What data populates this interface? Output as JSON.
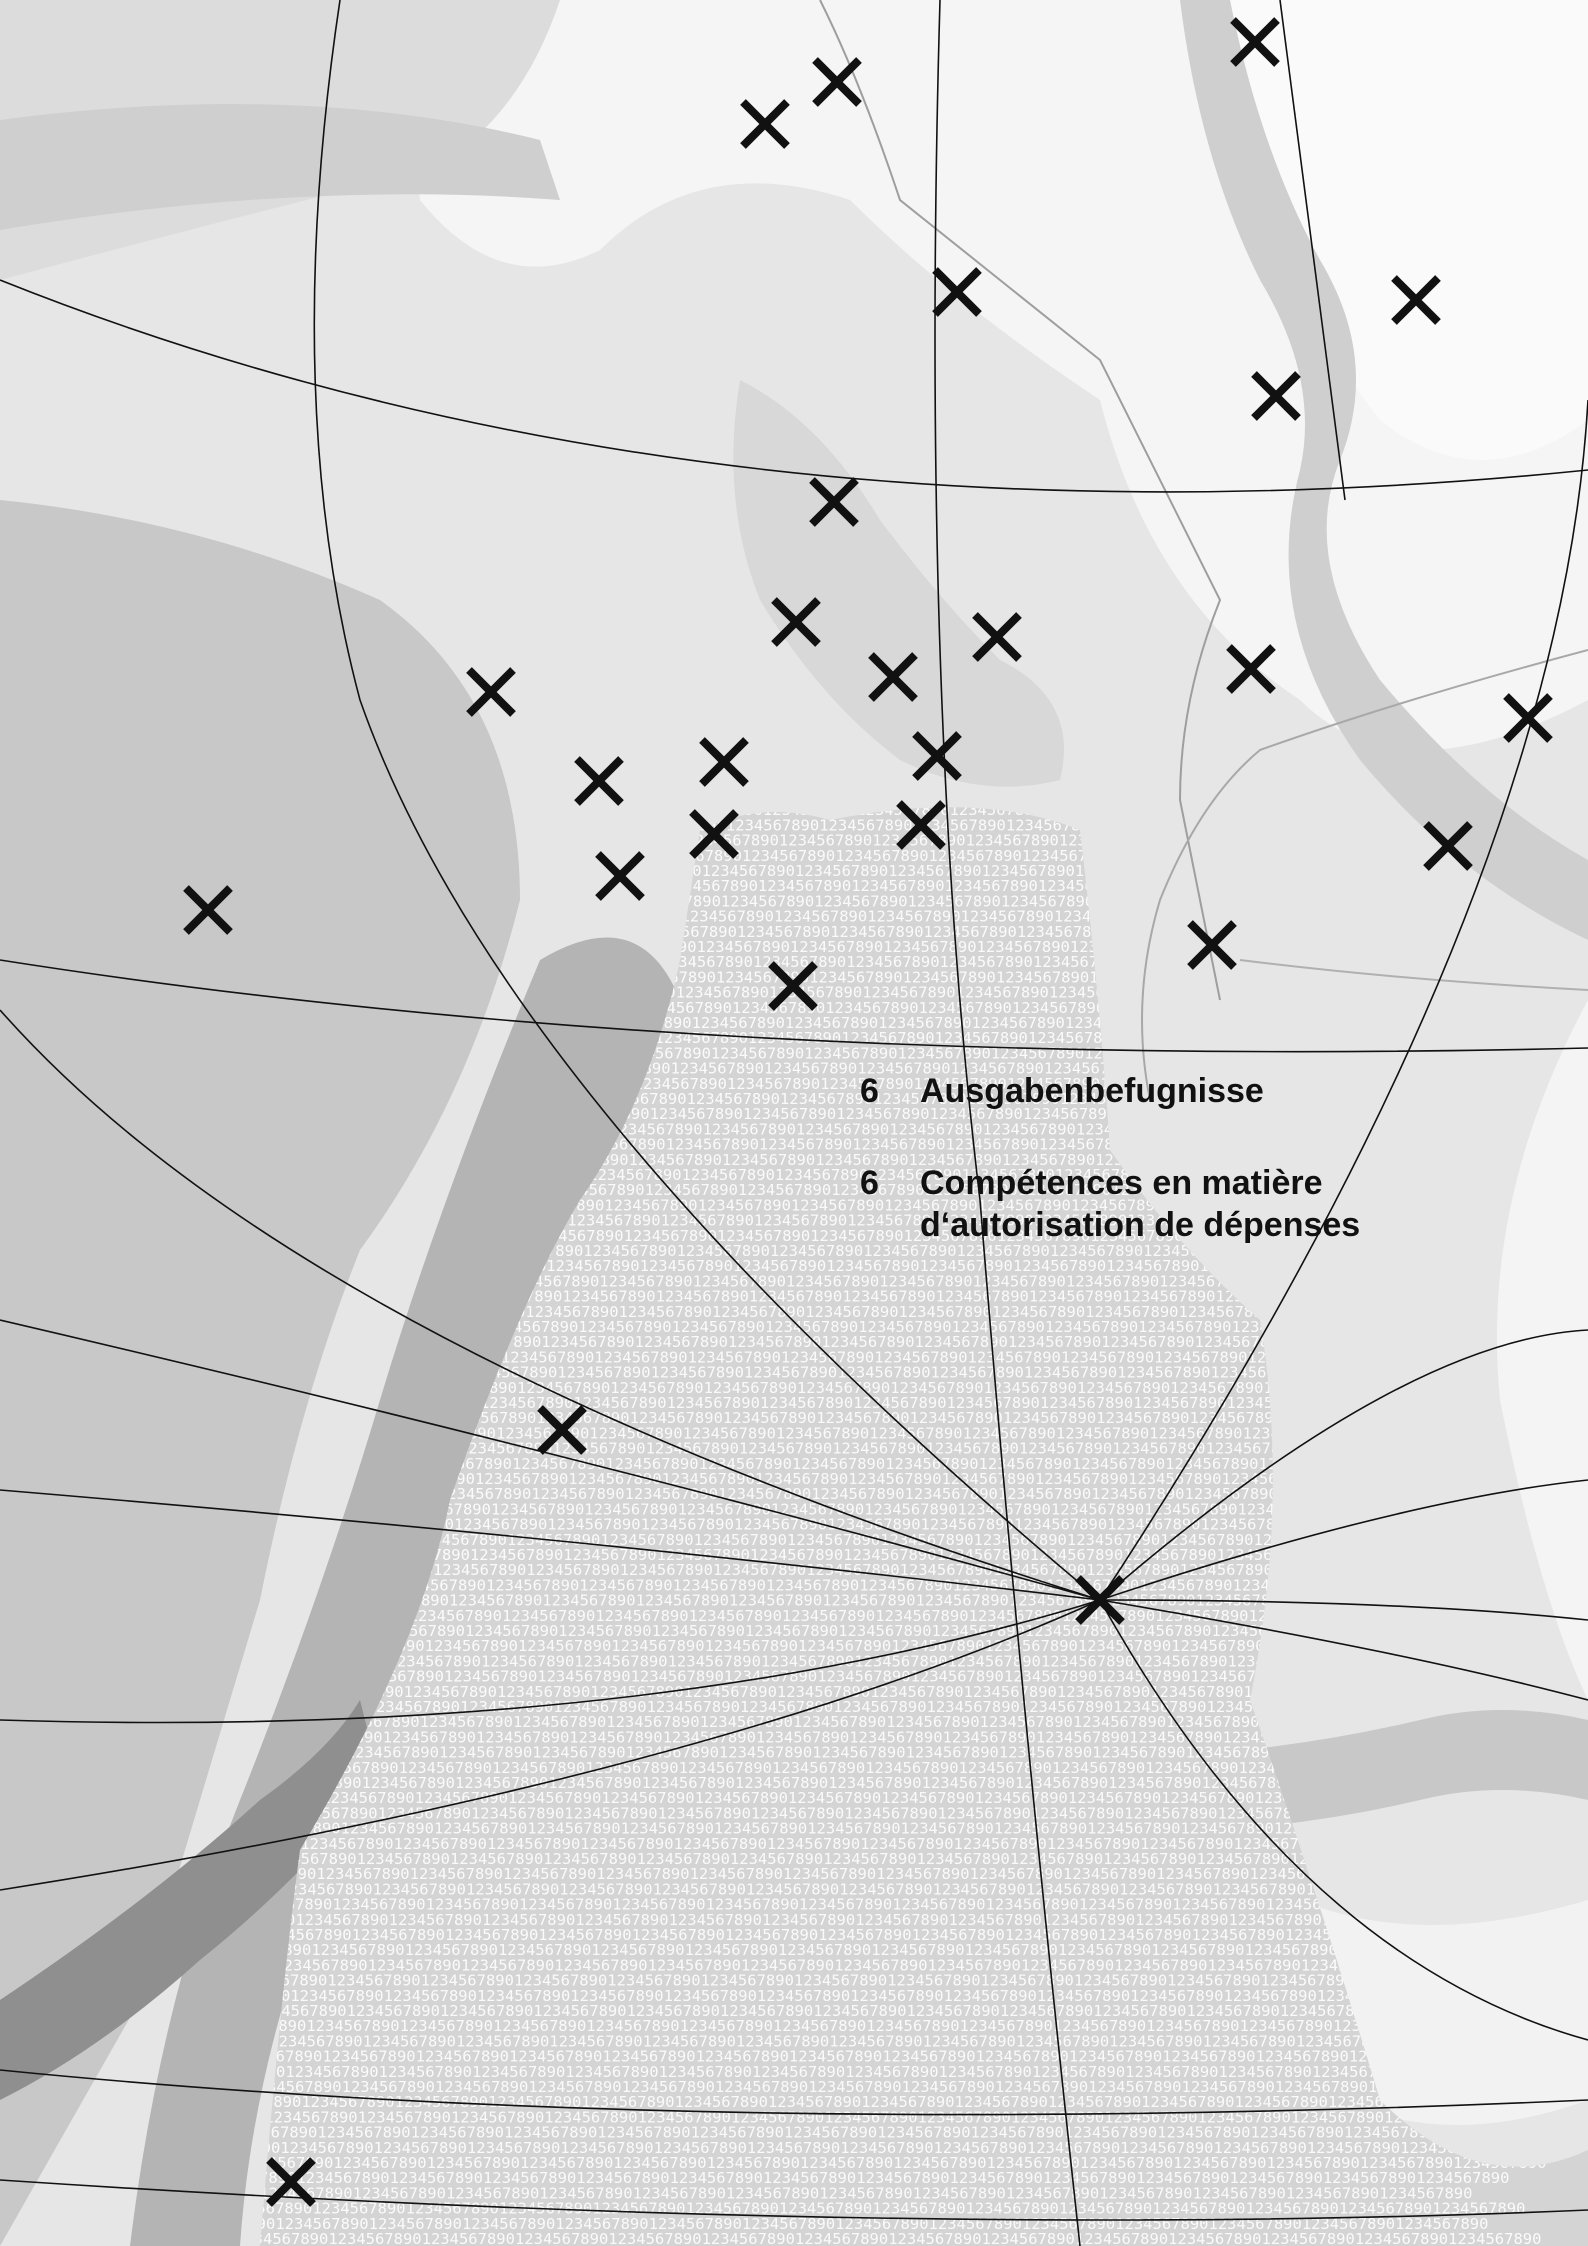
{
  "headings": {
    "de": {
      "number": "6",
      "title": "Ausgabenbefugnisse"
    },
    "fr": {
      "number": "6",
      "title_line1": "Compétences en matière",
      "title_line2": "d‘autorisation de dépenses"
    }
  },
  "map_texture": {
    "digit_string": "1234567890"
  },
  "colors": {
    "paper": "#e9e9e9",
    "light_region": "#f4f4f4",
    "mid_region": "#d2d2d2",
    "dark_region": "#a9a9a9",
    "ink": "#111111"
  },
  "icons": {
    "marker": "x-marker-icon"
  }
}
